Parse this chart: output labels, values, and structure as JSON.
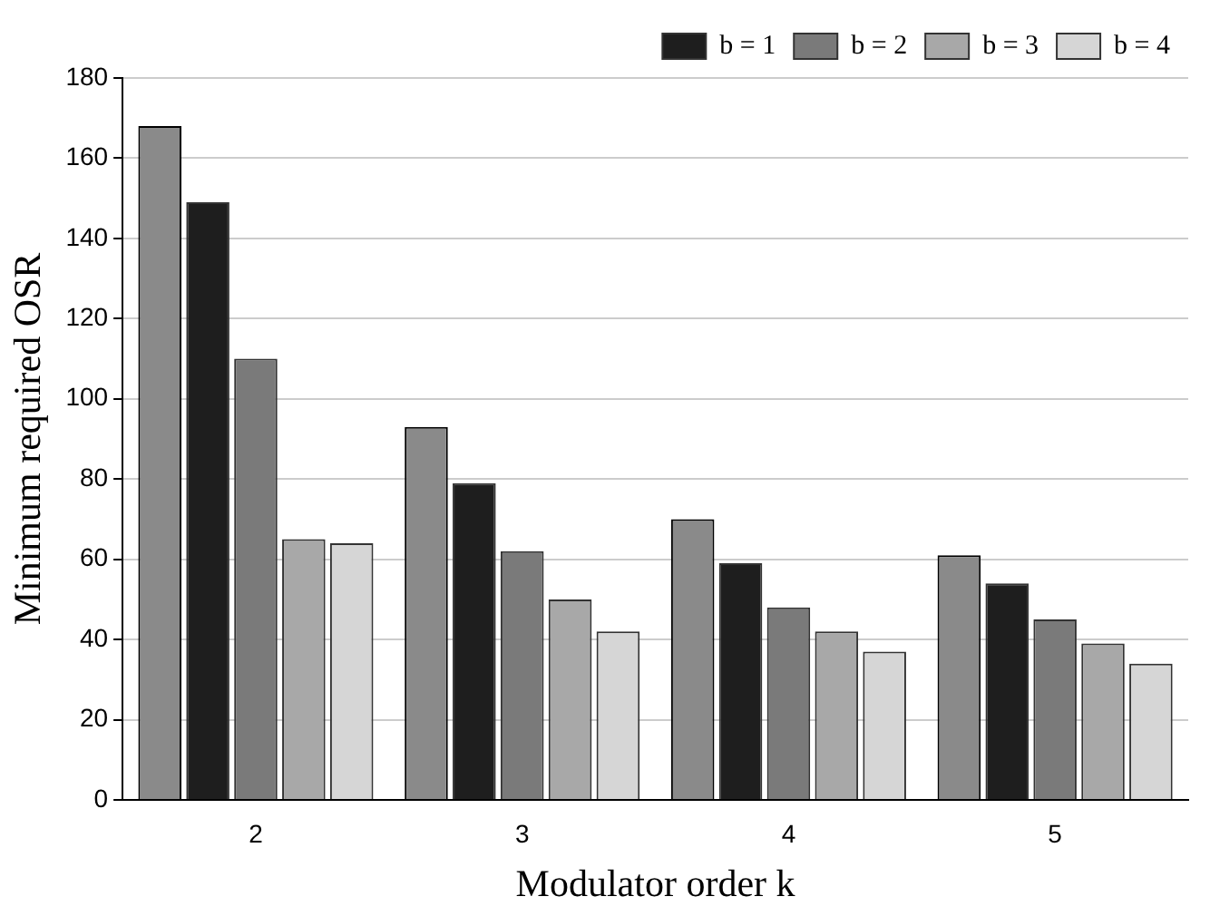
{
  "chart_data": {
    "type": "bar",
    "xlabel": "Modulator order k",
    "ylabel": "Minimum required OSR",
    "categories": [
      "2",
      "3",
      "4",
      "5"
    ],
    "series": [
      {
        "color": "#8a8a8a",
        "values": [
          168,
          93,
          70,
          61
        ]
      },
      {
        "name": "b = 1",
        "color": "#1e1e1e",
        "values": [
          149,
          79,
          59,
          54
        ]
      },
      {
        "name": "b = 2",
        "color": "#7a7a7a",
        "values": [
          110,
          62,
          48,
          45
        ]
      },
      {
        "name": "b = 3",
        "color": "#a8a8a8",
        "values": [
          65,
          50,
          42,
          39
        ]
      },
      {
        "name": "b = 4",
        "color": "#d6d6d6",
        "values": [
          64,
          42,
          37,
          34
        ]
      }
    ],
    "ylim": [
      0,
      180
    ],
    "yticks": [
      0,
      20,
      40,
      60,
      80,
      100,
      120,
      140,
      160,
      180
    ],
    "grid": "y",
    "legend": "top right"
  }
}
